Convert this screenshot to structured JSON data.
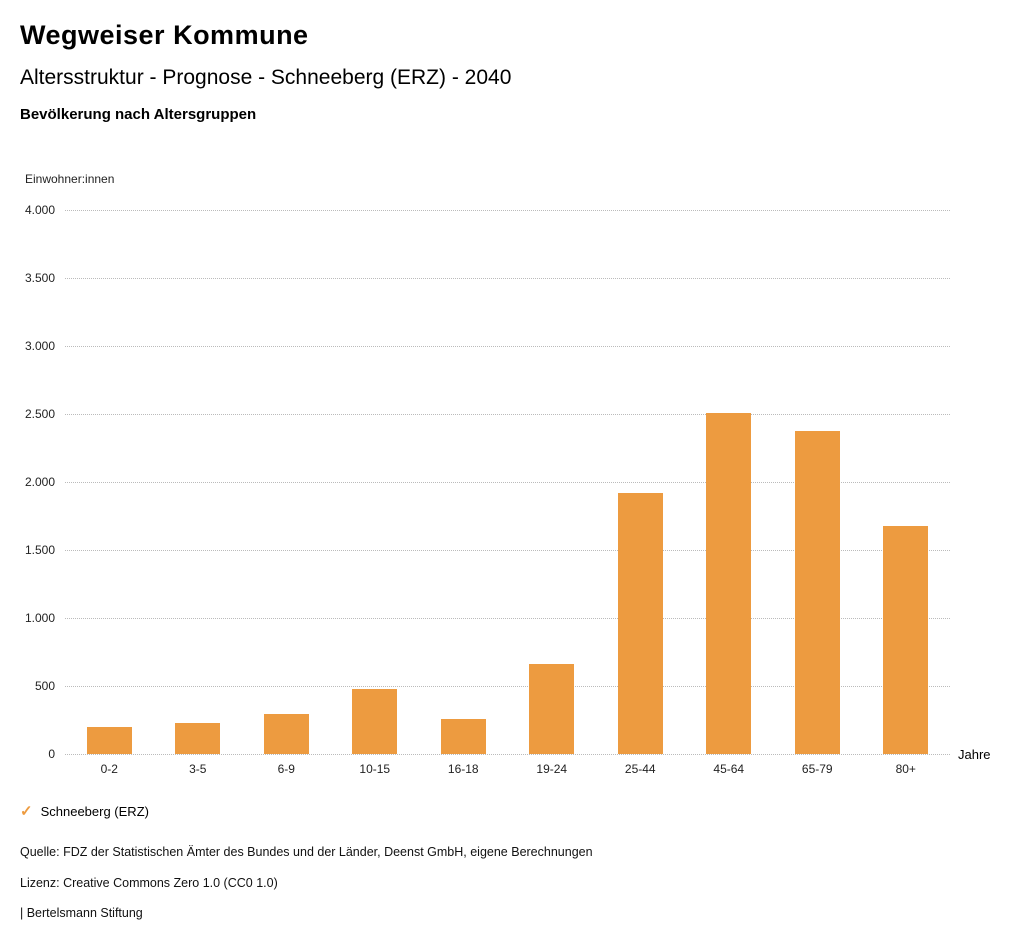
{
  "header": {
    "title": "Wegweiser Kommune",
    "subtitle": "Altersstruktur - Prognose - Schneeberg (ERZ) - 2040",
    "subsubtitle": "Bevölkerung nach Altersgruppen"
  },
  "chart_data": {
    "type": "bar",
    "title": "Bevölkerung nach Altersgruppen",
    "unit_label": "Einwohner:innen",
    "xlabel": "Jahre",
    "categories": [
      "0-2",
      "3-5",
      "6-9",
      "10-15",
      "16-18",
      "19-24",
      "25-44",
      "45-64",
      "65-79",
      "80+"
    ],
    "values": [
      200,
      230,
      295,
      480,
      260,
      665,
      1920,
      2510,
      2375,
      1680
    ],
    "ylim": [
      0,
      4000
    ],
    "ytick_step": 500,
    "ytick_labels": [
      "0",
      "500",
      "1.000",
      "1.500",
      "2.000",
      "2.500",
      "3.000",
      "3.500",
      "4.000"
    ],
    "bar_color": "#ED9B40",
    "grid": true,
    "legend_position": "bottom-left",
    "series_name": "Schneeberg (ERZ)"
  },
  "legend": {
    "marker": "✓",
    "label": "Schneeberg (ERZ)"
  },
  "footer": {
    "source": "Quelle: FDZ der Statistischen Ämter des Bundes und der Länder, Deenst GmbH, eigene Berechnungen",
    "license": "Lizenz: Creative Commons Zero 1.0 (CC0 1.0)",
    "attribution": "| Bertelsmann Stiftung"
  }
}
